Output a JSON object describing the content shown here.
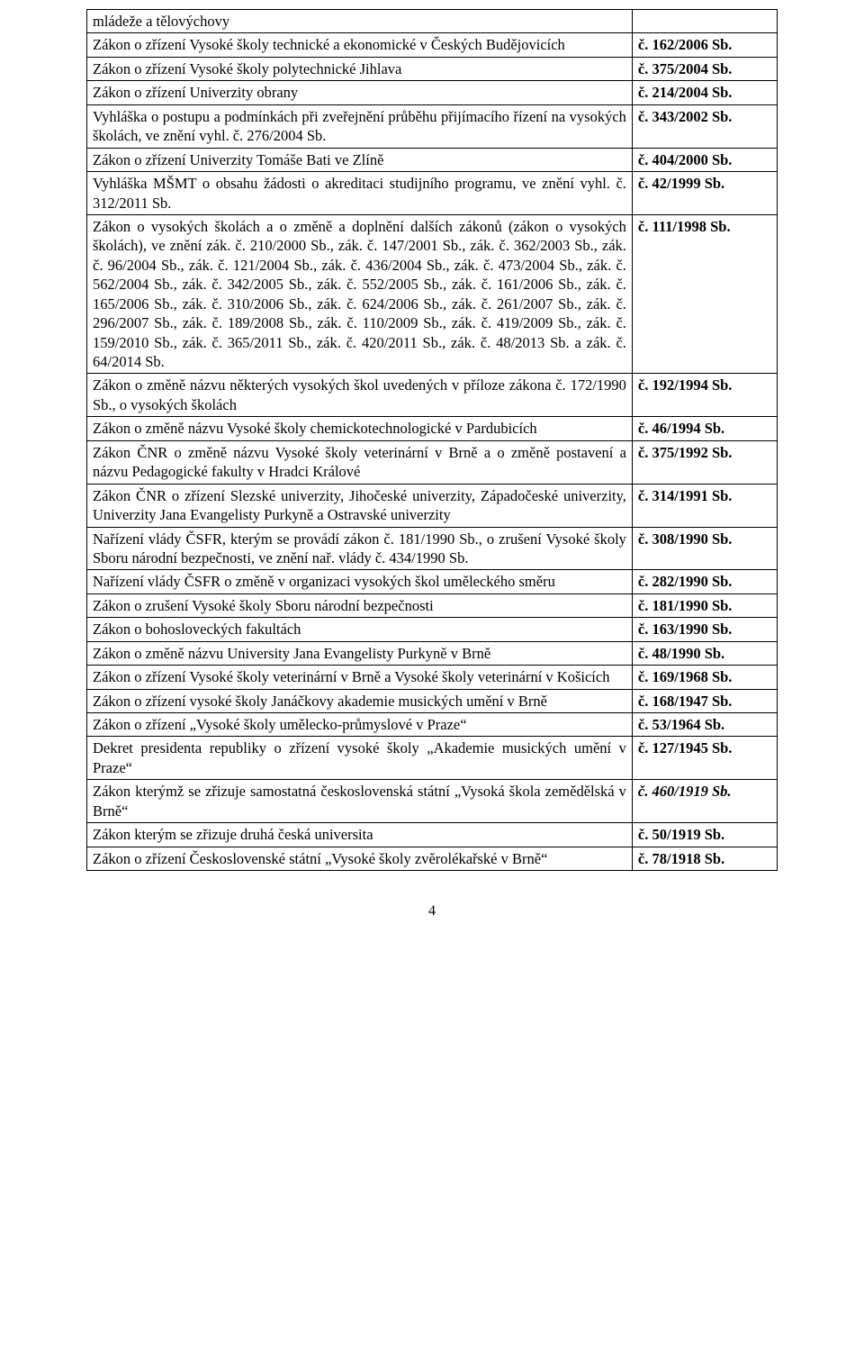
{
  "page_number": "4",
  "rows": [
    {
      "desc_html": "mládeže a tělovýchovy",
      "ref": ""
    },
    {
      "desc_html": "Zákon o zřízení Vysoké školy technické a ekonomické v Českých Budějovicích",
      "ref": "č. 162/2006 Sb.",
      "ref_bold": true
    },
    {
      "desc_html": "Zákon o zřízení Vysoké školy polytechnické Jihlava",
      "ref": "č. 375/2004 Sb.",
      "ref_bold": true
    },
    {
      "desc_html": "Zákon o zřízení Univerzity obrany",
      "ref": "č. 214/2004 Sb.",
      "ref_bold": true
    },
    {
      "desc_html": "Vyhláška o postupu a podmínkách při zveřejnění průběhu přijímacího řízení na vysokých školách, ve znění vyhl. č. 276/2004 Sb.",
      "ref": "č. 343/2002 Sb.",
      "ref_bold": true
    },
    {
      "desc_html": "Zákon o zřízení Univerzity Tomáše Bati ve Zlíně",
      "ref": "č. 404/2000 Sb.",
      "ref_bold": true
    },
    {
      "desc_html": "Vyhláška MŠMT o obsahu žádosti o akreditaci studijního programu, ve znění vyhl. č. 312/2011 Sb.",
      "ref": "č. 42/1999 Sb.",
      "ref_bold": true
    },
    {
      "desc_html": "Zákon o vysokých školách a o změně a doplnění dalších zákonů (zákon o vysokých školách), ve znění zák. č. 210/2000 Sb., zák. č. 147/2001 Sb., zák. č. 362/2003 Sb., zák. č. 96/2004 Sb., zák. č. 121/2004 Sb., zák. č. 436/2004 Sb., zák. č. 473/2004 Sb., zák. č. 562/2004 Sb., zák. č. 342/2005 Sb., zák. č. 552/2005 Sb., zák. č. 161/2006 Sb., zák. č. 165/2006 Sb., zák. č. 310/2006 Sb., zák. č. 624/2006 Sb., zák. č. 261/2007 Sb., zák. č. 296/2007 Sb., zák. č. 189/2008 Sb., zák. č. 110/2009 Sb., zák. č. 419/2009 Sb., zák. č. 159/2010 Sb., zák. č. 365/2011 Sb., zák. č. 420/2011 Sb., zák. č. 48/2013 Sb. a zák. č. 64/2014 Sb.",
      "ref": "č. 111/1998 Sb.",
      "ref_bold": true
    },
    {
      "desc_html": "Zákon o změně názvu některých vysokých škol uvedených v příloze zákona č. 172/1990 Sb., o vysokých školách",
      "ref": "č. 192/1994 Sb.",
      "ref_bold": true
    },
    {
      "desc_html": "Zákon o změně názvu Vysoké školy chemickotechnologické v Pardubicích",
      "ref": "č. 46/1994 Sb.",
      "ref_bold": true
    },
    {
      "desc_html": "Zákon ČNR o změně názvu Vysoké školy veterinární v Brně a o změně postavení a názvu Pedagogické fakulty v Hradci Králové",
      "ref": "č. 375/1992 Sb.",
      "ref_bold": true
    },
    {
      "desc_html": "Zákon ČNR o zřízení Slezské univerzity, Jihočeské univerzity, Západočeské univerzity, Univerzity Jana Evangelisty Purkyně a Ostravské univerzity",
      "ref": "č. 314/1991 Sb.",
      "ref_bold": true
    },
    {
      "desc_html": "Nařízení vlády ČSFR, kterým se provádí zákon č. 181/1990 Sb., o zrušení Vysoké školy Sboru národní bezpečnosti, ve znění nař. vlády č. 434/1990 Sb.",
      "ref": "č. 308/1990 Sb.",
      "ref_bold": true
    },
    {
      "desc_html": "Nařízení vlády ČSFR o změně v organizaci vysokých škol uměleckého směru",
      "ref": "č. 282/1990 Sb.",
      "ref_bold": true
    },
    {
      "desc_html": "Zákon o zrušení Vysoké školy Sboru národní bezpečnosti",
      "ref": "č. 181/1990 Sb.",
      "ref_bold": true
    },
    {
      "desc_html": "Zákon o bohosloveckých fakultách",
      "ref": "č. 163/1990 Sb.",
      "ref_bold": true
    },
    {
      "desc_html": "Zákon o změně názvu University Jana Evangelisty Purkyně v Brně",
      "ref": "č. 48/1990 Sb.",
      "ref_bold": true
    },
    {
      "desc_html": "Zákon o zřízení Vysoké školy veterinární v Brně a Vysoké školy veterinární v Košicích",
      "ref": "č. 169/1968 Sb.",
      "ref_bold": true
    },
    {
      "desc_html": "Zákon o zřízení vysoké školy Janáčkovy akademie musických umění v Brně",
      "ref": "č. 168/1947 Sb.",
      "ref_bold": true
    },
    {
      "desc_html": "Zákon o zřízení „Vysoké školy umělecko-průmyslové v Praze“",
      "ref": "č. 53/1964 Sb.",
      "ref_bold": true
    },
    {
      "desc_html": "Dekret presidenta republiky o zřízení vysoké školy „Akademie musických umění v Praze“",
      "ref": "č. 127/1945 Sb.",
      "ref_bold": true
    },
    {
      "desc_html": "Zákon kterýmž se zřizuje samostatná československá státní „Vysoká škola zemědělská v Brně“",
      "ref": "č. 460/1919 Sb.",
      "ref_bold": true,
      "ref_ital": true
    },
    {
      "desc_html": "Zákon kterým se zřizuje druhá česká universita",
      "ref": "č. 50/1919 Sb.",
      "ref_bold": true
    },
    {
      "desc_html": "Zákon o zřízení Československé státní „Vysoké školy zvěrolékařské v Brně“",
      "ref": "č. 78/1918 Sb.",
      "ref_bold": true
    }
  ]
}
